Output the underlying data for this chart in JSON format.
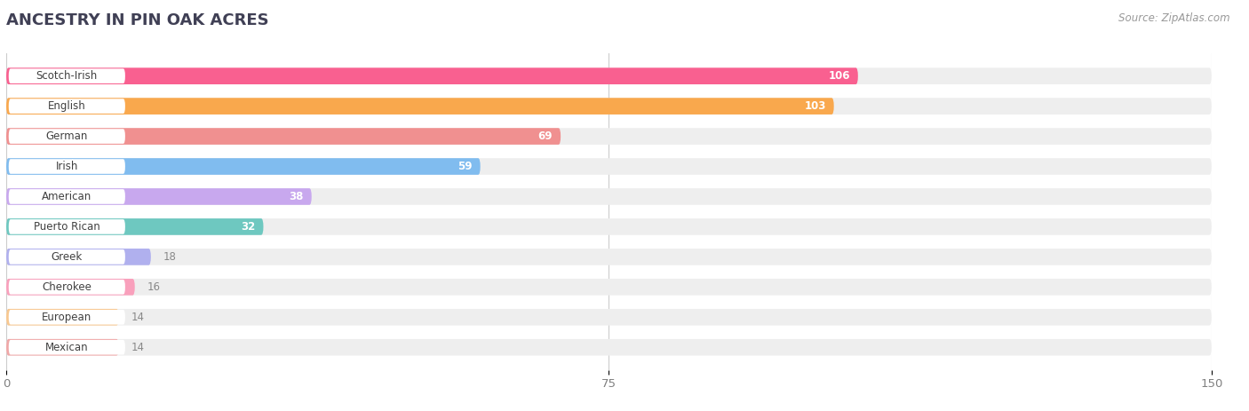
{
  "title": "ANCESTRY IN PIN OAK ACRES",
  "source": "Source: ZipAtlas.com",
  "categories": [
    "Scotch-Irish",
    "English",
    "German",
    "Irish",
    "American",
    "Puerto Rican",
    "Greek",
    "Cherokee",
    "European",
    "Mexican"
  ],
  "values": [
    106,
    103,
    69,
    59,
    38,
    32,
    18,
    16,
    14,
    14
  ],
  "bar_colors": [
    "#F96090",
    "#F9A84D",
    "#F09090",
    "#80BCEF",
    "#C8A8EE",
    "#6EC8C0",
    "#B0B0EE",
    "#F9A0BC",
    "#F8C890",
    "#F0A8A8"
  ],
  "bg_bar_color": "#EEEEEE",
  "xlim": [
    0,
    150
  ],
  "xticks": [
    0,
    75,
    150
  ],
  "background_color": "#FFFFFF",
  "title_color": "#404055",
  "label_color": "#404040",
  "value_color_outside": "#888888",
  "bar_height": 0.55,
  "n_bars": 10,
  "inside_threshold": 30
}
